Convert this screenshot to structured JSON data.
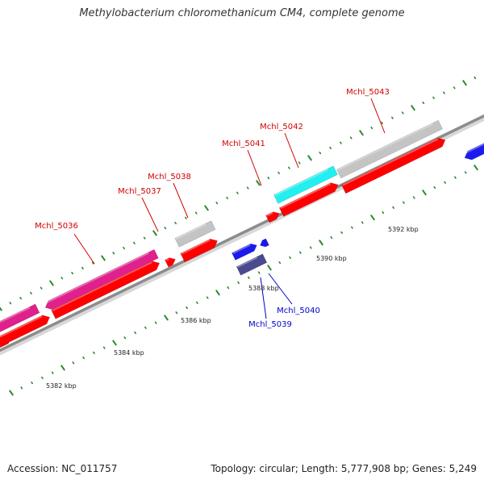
{
  "title": "Methylobacterium chloromethanicum CM4, complete genome",
  "footer": {
    "accession": "Accession: NC_011757",
    "summary": "Topology: circular; Length: 5,777,908 bp; Genes: 5,249"
  },
  "colors": {
    "background": "#ffffff",
    "backbone": "#8c8c8c",
    "tick_dot": "#2a8a2a",
    "label_red": "#d10000",
    "label_blue": "#0000cc",
    "gene_red": "#ff0000",
    "gene_magenta": "#e0208c",
    "gene_gray": "#c4c4c4",
    "gene_cyan": "#22f0f0",
    "gene_blue": "#1a1aee",
    "gene_navy": "#4a4a8e"
  },
  "scale_labels": [
    "5382 kbp",
    "5384 kbp",
    "5386 kbp",
    "5388 kbp",
    "5390 kbp",
    "5392 kbp"
  ],
  "gene_labels": [
    {
      "text": "Mchl_5036",
      "color": "red"
    },
    {
      "text": "Mchl_5037",
      "color": "red"
    },
    {
      "text": "Mchl_5038",
      "color": "red"
    },
    {
      "text": "Mchl_5039",
      "color": "blue"
    },
    {
      "text": "Mchl_5040",
      "color": "blue"
    },
    {
      "text": "Mchl_5041",
      "color": "red"
    },
    {
      "text": "Mchl_5042",
      "color": "red"
    },
    {
      "text": "Mchl_5043",
      "color": "red"
    }
  ]
}
